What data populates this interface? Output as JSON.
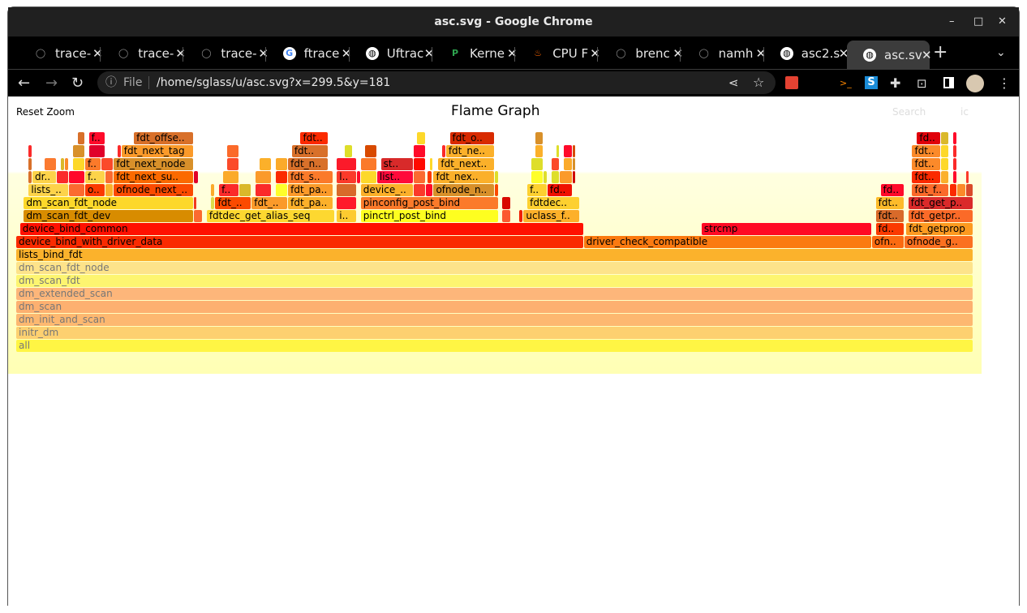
{
  "window": {
    "title": "asc.svg - Google Chrome",
    "minimize": "–",
    "maximize": "□",
    "close": "✕"
  },
  "tabs": [
    {
      "label": "trace-",
      "icon": "github-icon"
    },
    {
      "label": "trace-",
      "icon": "github-icon"
    },
    {
      "label": "trace-",
      "icon": "github-icon"
    },
    {
      "label": "ftrace",
      "icon": "google-icon"
    },
    {
      "label": "Uftrac",
      "icon": "globe-icon"
    },
    {
      "label": "Kerne",
      "icon": "p-logo-icon"
    },
    {
      "label": "CPU F",
      "icon": "flame-icon"
    },
    {
      "label": "brenc",
      "icon": "github-icon"
    },
    {
      "label": "namh",
      "icon": "github-icon"
    },
    {
      "label": "asc2.s",
      "icon": "globe-icon"
    },
    {
      "label": "asc.sv",
      "icon": "globe-icon",
      "active": true
    }
  ],
  "toolbar": {
    "file_label": "File",
    "url": "/home/sglass/u/asc.svg?x=299.5&y=181"
  },
  "flamegraph": {
    "title": "Flame Graph",
    "reset_zoom": "Reset Zoom",
    "search": "Search",
    "ic": "ic",
    "frames": [
      [
        "all",
        0,
        100,
        0,
        "#fff544",
        1
      ],
      [
        "initr_dm",
        0,
        100,
        1,
        "#fdd070",
        1
      ],
      [
        "dm_init_and_scan",
        0,
        100,
        2,
        "#fdb870",
        1
      ],
      [
        "dm_scan",
        0,
        100,
        3,
        "#fdb070",
        1
      ],
      [
        "dm_extended_scan",
        0,
        100,
        4,
        "#fdb67a",
        1
      ],
      [
        "dm_scan_fdt",
        0,
        100,
        5,
        "#fdf570",
        1
      ],
      [
        "dm_scan_fdt_node",
        0,
        100,
        6,
        "#fde38a",
        1
      ],
      [
        "lists_bind_fdt",
        0,
        100,
        7,
        "#fbb22c",
        0
      ],
      [
        "device_bind_with_driver_data",
        0,
        59.3,
        8,
        "#fa2a00",
        0
      ],
      [
        "driver_check_compatible",
        59.3,
        89.4,
        8,
        "#fb7a10",
        0
      ],
      [
        "ofn..",
        89.4,
        92.8,
        8,
        "#fb6a10",
        0
      ],
      [
        "ofnode_g..",
        92.8,
        100,
        8,
        "#fb7020",
        0
      ],
      [
        "device_bind_common",
        0.4,
        59.3,
        9,
        "#ff1000",
        0
      ],
      [
        "strcmp",
        71.6,
        89.4,
        9,
        "#ff0a24",
        0
      ],
      [
        "fd..",
        89.8,
        92.8,
        9,
        "#fb3a00",
        0
      ],
      [
        "fdt_getprop",
        93.0,
        100,
        9,
        "#fd9a20",
        0
      ],
      [
        "dm_scan_fdt_dev",
        0.8,
        18.6,
        10,
        "#d88c00",
        0
      ],
      [
        "",
        18.6,
        19.5,
        10,
        "#fb6a30",
        0
      ],
      [
        "fdtdec_get_alias_seq",
        19.9,
        33.3,
        10,
        "#fdd830",
        0
      ],
      [
        "i..",
        33.5,
        35.6,
        10,
        "#fdcb30",
        0
      ],
      [
        "pinctrl_post_bind",
        36.0,
        50.4,
        10,
        "#fefe20",
        0
      ],
      [
        "",
        50.8,
        51.7,
        10,
        "#fb5a30",
        0
      ],
      [
        "",
        52.5,
        53.0,
        10,
        "#f02000",
        0
      ],
      [
        "uclass_f..",
        53.0,
        58.9,
        10,
        "#fdb02a",
        0
      ],
      [
        "fdt..",
        89.8,
        92.8,
        10,
        "#d86a2a",
        0
      ],
      [
        "fdt_getpr..",
        93.2,
        100,
        10,
        "#fb6a28",
        0
      ],
      [
        "dm_scan_fdt_node",
        0.8,
        18.6,
        11,
        "#fdd82a",
        0
      ],
      [
        "",
        18.6,
        18.9,
        11,
        "#f03a20",
        0
      ],
      [
        "",
        20.3,
        20.8,
        11,
        "#dedc4a",
        0
      ],
      [
        "fdt_..",
        20.8,
        24.6,
        11,
        "#fb4a00",
        0
      ],
      [
        "fdt_..",
        24.6,
        28.4,
        11,
        "#fb9a2a",
        0
      ],
      [
        "fdt_pa..",
        28.4,
        33.1,
        11,
        "#fbb02a",
        0
      ],
      [
        "",
        33.5,
        35.6,
        11,
        "#ff1a2a",
        0
      ],
      [
        "pinconfig_post_bind",
        36.0,
        50.4,
        11,
        "#fb7a2a",
        0
      ],
      [
        "",
        50.8,
        51.7,
        11,
        "#d80a00",
        0
      ],
      [
        "fdtdec..",
        53.4,
        58.9,
        11,
        "#fdd030",
        0
      ],
      [
        "fdt..",
        89.8,
        92.8,
        11,
        "#fdbb2a",
        0
      ],
      [
        "fdt_get_p..",
        93.2,
        100,
        11,
        "#da2a2a",
        0
      ],
      [
        "lists_..",
        1.3,
        5.5,
        12,
        "#fdd34a",
        0
      ],
      [
        "",
        5.5,
        7.2,
        12,
        "#fb6a30",
        0
      ],
      [
        "o..",
        7.2,
        9.3,
        12,
        "#fb3a00",
        0
      ],
      [
        "",
        9.3,
        10.2,
        12,
        "#fbb02a",
        0
      ],
      [
        "ofnode_next_..",
        10.2,
        18.6,
        12,
        "#fb4a00",
        0
      ],
      [
        "",
        20.3,
        20.8,
        12,
        "#fbaa2a",
        0
      ],
      [
        "f..",
        21.2,
        23.3,
        12,
        "#fb2a2a",
        0
      ],
      [
        "",
        23.3,
        24.6,
        12,
        "#dab82a",
        0
      ],
      [
        "",
        25.0,
        26.7,
        12,
        "#fb2a2a",
        0
      ],
      [
        "",
        27.1,
        28.4,
        12,
        "#fefe2a",
        0
      ],
      [
        "fdt_pa..",
        28.4,
        33.1,
        12,
        "#fb9a2a",
        0
      ],
      [
        "",
        33.5,
        35.6,
        12,
        "#d86a2a",
        0
      ],
      [
        "device_..",
        36.0,
        41.5,
        12,
        "#fbb02a",
        0
      ],
      [
        "",
        41.5,
        42.8,
        12,
        "#fb3a2a",
        0
      ],
      [
        "",
        42.8,
        43.6,
        12,
        "#ff0a2a",
        0
      ],
      [
        "ofnode_n..",
        43.6,
        50.0,
        12,
        "#d8902a",
        0
      ],
      [
        "",
        50.0,
        50.4,
        12,
        "#fb4a00",
        0
      ],
      [
        "f..",
        53.4,
        55.5,
        12,
        "#fdd030",
        0
      ],
      [
        "fd..",
        55.5,
        58.1,
        12,
        "#f01000",
        0
      ],
      [
        "fd..",
        90.3,
        92.8,
        12,
        "#ff0a2a",
        0
      ],
      [
        "fdt_f..",
        93.6,
        97.5,
        12,
        "#fb6a2a",
        0
      ],
      [
        "",
        97.5,
        98.3,
        12,
        "#fb2a00",
        0
      ],
      [
        "",
        98.3,
        99.2,
        12,
        "#fb8a2a",
        0
      ],
      [
        "",
        99.2,
        100,
        12,
        "#da4a2a",
        0
      ],
      [
        "",
        1.3,
        1.7,
        13,
        "#d8702a",
        0
      ],
      [
        "dr..",
        1.7,
        4.2,
        13,
        "#fdd34a",
        0
      ],
      [
        "",
        4.2,
        5.5,
        13,
        "#fb2a2a",
        0
      ],
      [
        "",
        5.5,
        7.2,
        13,
        "#ff0a2a",
        0
      ],
      [
        "f..",
        7.2,
        9.3,
        13,
        "#fdd34a",
        0
      ],
      [
        "",
        9.3,
        10.2,
        13,
        "#fb6a30",
        0
      ],
      [
        "fdt_next_su..",
        10.2,
        18.6,
        13,
        "#fb6a00",
        0
      ],
      [
        "",
        18.6,
        19.1,
        13,
        "#e0002a",
        0
      ],
      [
        "",
        21.6,
        23.3,
        13,
        "#fbaa2a",
        0
      ],
      [
        "",
        25.0,
        26.7,
        13,
        "#fb9a2a",
        0
      ],
      [
        "",
        27.1,
        28.4,
        13,
        "#fb2a00",
        0
      ],
      [
        "fdt_s..",
        28.4,
        33.1,
        13,
        "#fb7a2a",
        0
      ],
      [
        "l..",
        33.5,
        35.6,
        13,
        "#fb3a2a",
        0
      ],
      [
        "",
        35.6,
        36.0,
        13,
        "#ff0a2a",
        0
      ],
      [
        "",
        36.0,
        37.7,
        13,
        "#fdd82a",
        0
      ],
      [
        "list..",
        37.7,
        41.5,
        13,
        "#ff0a3a",
        0
      ],
      [
        "",
        41.5,
        42.8,
        13,
        "#fb6a30",
        0
      ],
      [
        "",
        43.0,
        43.5,
        13,
        "#fb3a00",
        0
      ],
      [
        "fdt_nex..",
        43.6,
        50.0,
        13,
        "#fbb02a",
        0
      ],
      [
        "",
        50.0,
        50.4,
        13,
        "#dede2a",
        0
      ],
      [
        "",
        53.8,
        55.1,
        13,
        "#fefe2a",
        0
      ],
      [
        "",
        55.1,
        55.5,
        13,
        "#dede2a",
        0
      ],
      [
        "",
        55.9,
        56.8,
        13,
        "#dede2a",
        0
      ],
      [
        "",
        56.8,
        58.1,
        13,
        "#fb9a2a",
        0
      ],
      [
        "",
        58.1,
        58.5,
        13,
        "#d00a00",
        0
      ],
      [
        "fdt..",
        93.6,
        96.6,
        13,
        "#fb2a00",
        0
      ],
      [
        "",
        96.6,
        97.5,
        13,
        "#fbb02a",
        0
      ],
      [
        "",
        97.9,
        98.3,
        13,
        "#ff0a2a",
        0
      ],
      [
        "",
        99.2,
        99.6,
        13,
        "#fb3a2a",
        0
      ],
      [
        "",
        1.3,
        1.7,
        14,
        "#d8702a",
        0
      ],
      [
        "",
        3.0,
        4.2,
        14,
        "#fb7a30",
        0
      ],
      [
        "",
        4.7,
        5.1,
        14,
        "#dab82a",
        0
      ],
      [
        "",
        5.1,
        5.5,
        14,
        "#fb8a2a",
        0
      ],
      [
        "",
        5.9,
        7.2,
        14,
        "#fdd82a",
        0
      ],
      [
        "f..",
        7.2,
        8.9,
        14,
        "#fb7a2a",
        0
      ],
      [
        "",
        8.9,
        10.2,
        14,
        "#fb4a2a",
        0
      ],
      [
        "fdt_next_node",
        10.2,
        18.6,
        14,
        "#d8902a",
        0
      ],
      [
        "",
        22.0,
        23.3,
        14,
        "#fb4a2a",
        0
      ],
      [
        "",
        25.4,
        26.7,
        14,
        "#fbb02a",
        0
      ],
      [
        "",
        27.1,
        28.4,
        14,
        "#fbaa2a",
        0
      ],
      [
        "fdt_n..",
        28.4,
        32.6,
        14,
        "#d8702a",
        0
      ],
      [
        "",
        33.5,
        35.6,
        14,
        "#fb1a2a",
        0
      ],
      [
        "",
        36.0,
        37.7,
        14,
        "#fb7a2a",
        0
      ],
      [
        "st..",
        38.1,
        41.5,
        14,
        "#d82a2a",
        0
      ],
      [
        "",
        41.5,
        42.8,
        14,
        "#ff0a00",
        0
      ],
      [
        "",
        43.2,
        43.6,
        14,
        "#fdd82a",
        0
      ],
      [
        "fdt_next..",
        44.1,
        50.0,
        14,
        "#fbb02a",
        0
      ],
      [
        "",
        53.8,
        55.1,
        14,
        "#dede2a",
        0
      ],
      [
        "",
        55.9,
        56.8,
        14,
        "#fb4a2a",
        0
      ],
      [
        "",
        57.2,
        58.1,
        14,
        "#fbaa2a",
        0
      ],
      [
        "",
        58.1,
        58.5,
        14,
        "#d8902a",
        0
      ],
      [
        "fdt..",
        93.6,
        96.6,
        14,
        "#fb8a2a",
        0
      ],
      [
        "",
        96.6,
        97.5,
        14,
        "#fdd82a",
        0
      ],
      [
        "",
        97.9,
        98.3,
        14,
        "#fb2a2a",
        0
      ],
      [
        "",
        1.3,
        1.7,
        15,
        "#fb2a2a",
        0
      ],
      [
        "",
        5.9,
        7.2,
        15,
        "#d8902a",
        0
      ],
      [
        "",
        7.6,
        9.3,
        15,
        "#e0002a",
        0
      ],
      [
        "",
        10.6,
        11.0,
        15,
        "#fb2a2a",
        0
      ],
      [
        "fdt_next_tag",
        11.0,
        18.6,
        15,
        "#fb9a2a",
        0
      ],
      [
        "",
        22.0,
        23.3,
        15,
        "#fb6a2a",
        0
      ],
      [
        "fdt..",
        28.8,
        32.6,
        15,
        "#d8702a",
        0
      ],
      [
        "",
        34.3,
        35.2,
        15,
        "#dede2a",
        0
      ],
      [
        "",
        36.4,
        37.7,
        15,
        "#d84a00",
        0
      ],
      [
        "",
        41.5,
        42.8,
        15,
        "#ff0a2a",
        0
      ],
      [
        "",
        44.5,
        44.9,
        15,
        "#fb2a2a",
        0
      ],
      [
        "fdt_ne..",
        44.9,
        50.0,
        15,
        "#fbb02a",
        0
      ],
      [
        "",
        54.2,
        55.1,
        15,
        "#fbb02a",
        0
      ],
      [
        "",
        56.4,
        56.8,
        15,
        "#dede2a",
        0
      ],
      [
        "",
        57.2,
        58.1,
        15,
        "#ff0a2a",
        0
      ],
      [
        "",
        58.1,
        58.5,
        15,
        "#d84a00",
        0
      ],
      [
        "fdt..",
        93.6,
        96.6,
        15,
        "#fb8a2a",
        0
      ],
      [
        "",
        96.6,
        97.5,
        15,
        "#fdd82a",
        0
      ],
      [
        "",
        97.9,
        98.3,
        15,
        "#fb2a2a",
        0
      ],
      [
        "",
        6.4,
        7.2,
        16,
        "#d8702a",
        0
      ],
      [
        "f..",
        7.6,
        9.3,
        16,
        "#ff0a2a",
        0
      ],
      [
        "fdt_offse..",
        12.3,
        18.6,
        16,
        "#d8702a",
        0
      ],
      [
        "fdt..",
        29.7,
        32.6,
        16,
        "#fb2a00",
        0
      ],
      [
        "",
        41.9,
        42.8,
        16,
        "#fdd82a",
        0
      ],
      [
        "fdt_o..",
        45.3,
        50.0,
        16,
        "#d82a00",
        0
      ],
      [
        "",
        54.2,
        55.1,
        16,
        "#d8902a",
        0
      ],
      [
        "fd..",
        94.1,
        96.6,
        16,
        "#e0000a",
        0
      ],
      [
        "",
        96.6,
        97.5,
        16,
        "#dab82a",
        0
      ],
      [
        "",
        97.9,
        98.3,
        16,
        "#ff0a2a",
        0
      ]
    ]
  }
}
